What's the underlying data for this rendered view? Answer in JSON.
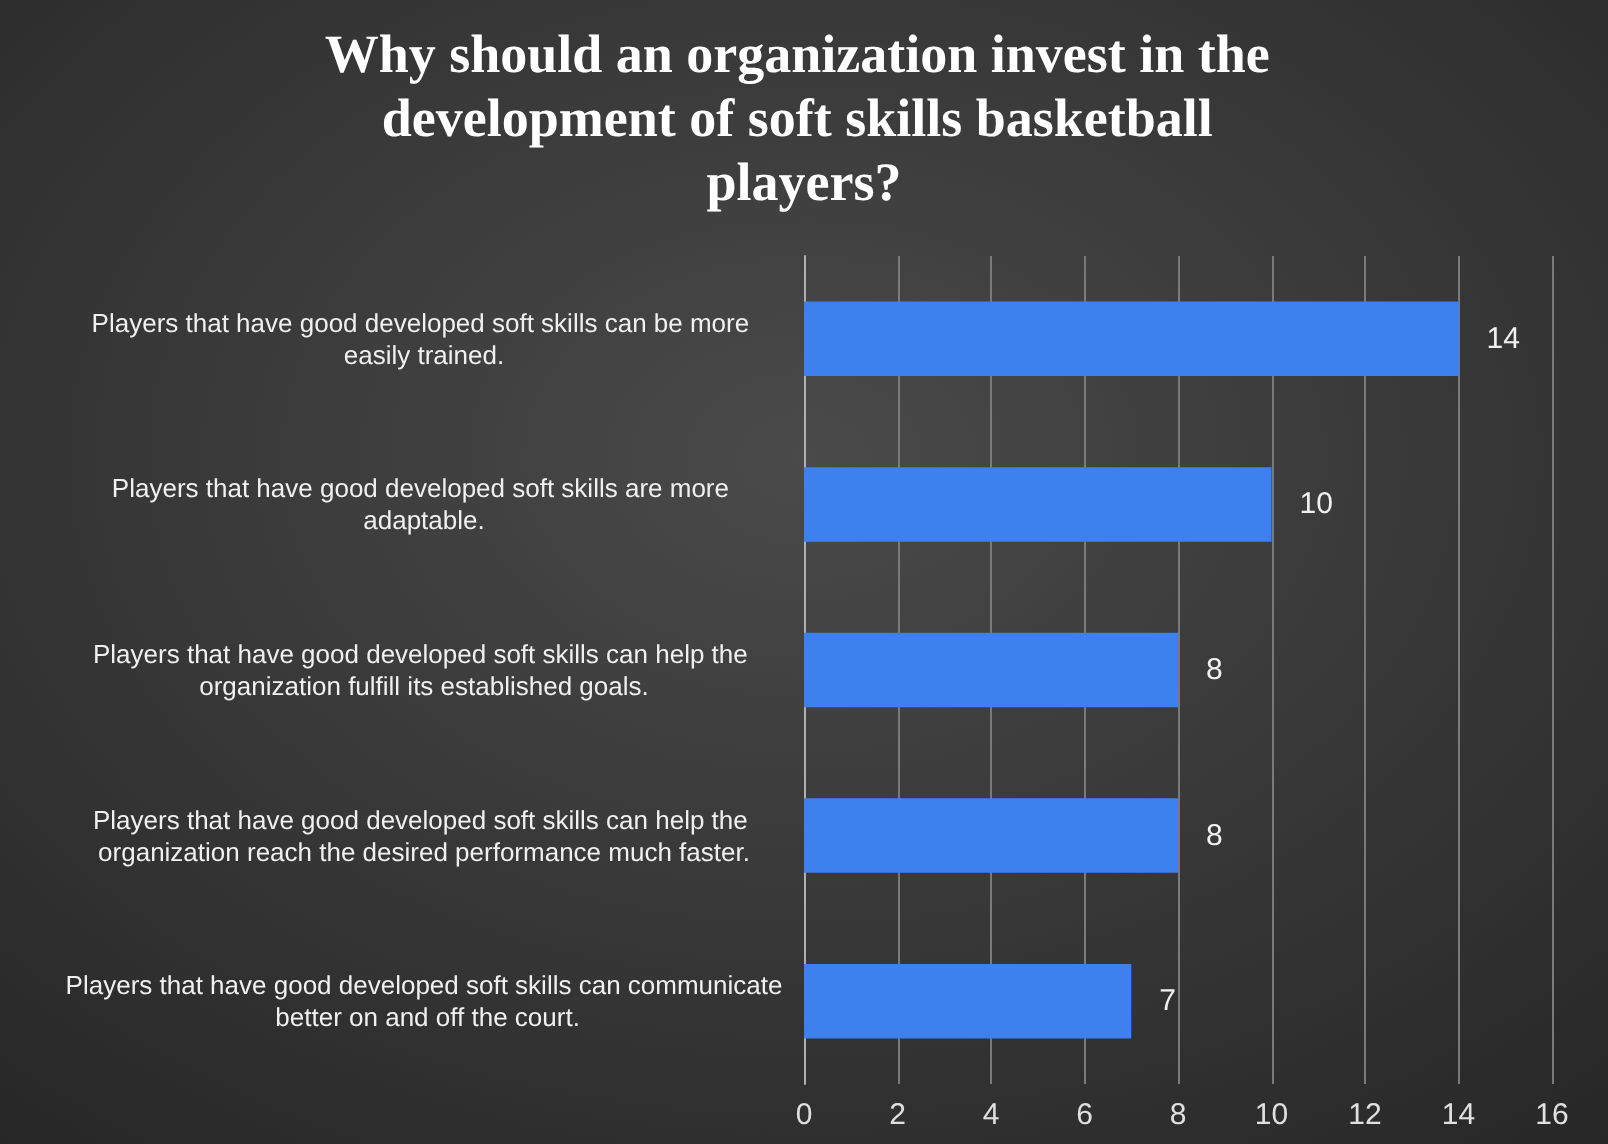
{
  "chart_data": {
    "type": "bar",
    "orientation": "horizontal",
    "title": "Why should an organization invest in the development of soft skills basketball players?",
    "categories": [
      "Players that have good developed soft skills can be more easily trained.",
      "Players that have good developed soft skills are more adaptable.",
      "Players that have good developed soft skills can help the organization fulfill its established goals.",
      "Players that have good developed soft skills can help the organization reach the desired performance much faster.",
      "Players that have good developed soft skills can communicate better on and off the court."
    ],
    "values": [
      14,
      10,
      8,
      8,
      7
    ],
    "color": "#3d80ee",
    "xlim": [
      0,
      16
    ],
    "xticks": [
      0,
      2,
      4,
      6,
      8,
      10,
      12,
      14,
      16
    ],
    "grid": "x",
    "data_labels": true
  }
}
